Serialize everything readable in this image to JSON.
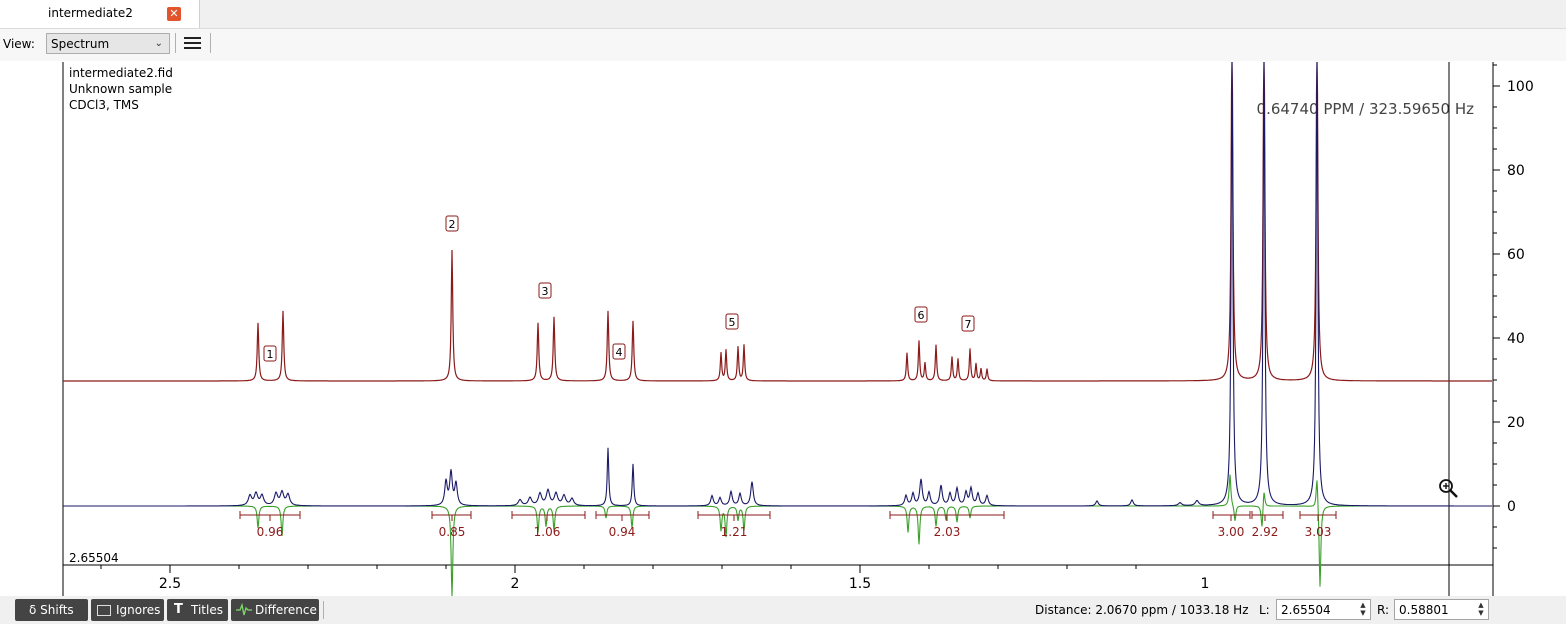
{
  "tab": {
    "title": "intermediate2"
  },
  "toolbar": {
    "view_label": "View:",
    "view_value": "Spectrum"
  },
  "info": {
    "filename": "intermediate2.fid",
    "sample": "Unknown sample",
    "solvent": "CDCl3, TMS"
  },
  "cursor_readout": "0.64740 PPM / 323.59650 Hz",
  "cursor_left_value": "2.65504",
  "x_axis": {
    "ticks": [
      "2.5",
      "2",
      "1.5",
      "1"
    ]
  },
  "y_axis": {
    "ticks": [
      "100",
      "80",
      "60",
      "40",
      "20",
      "0"
    ]
  },
  "peaks": [
    "1",
    "2",
    "3",
    "4",
    "5",
    "6",
    "7"
  ],
  "integrals": [
    "0.96",
    "0.85",
    "1.06",
    "0.94",
    "1.21",
    "2.03",
    "3.00",
    "2.92",
    "3.03"
  ],
  "status": {
    "buttons": [
      "δ Shifts",
      "Ignores",
      "Titles",
      "Difference"
    ],
    "distance": "Distance:  2.0670 ppm / 1033.18 Hz",
    "l_label": "L:",
    "l_value": "2.65504",
    "r_label": "R:",
    "r_value": "0.58801"
  },
  "colors": {
    "experimental": "#8b1a1a",
    "simulated": "#1a1a66",
    "difference": "#3aa02a",
    "close": "#e2542c",
    "status_button": "#444444"
  },
  "icons": [
    "close-icon",
    "chevron-down-icon",
    "menu-icon",
    "zoom-icon",
    "shifts-icon",
    "ignores-icon",
    "titles-icon",
    "difference-icon",
    "spin-arrows-icon"
  ]
}
